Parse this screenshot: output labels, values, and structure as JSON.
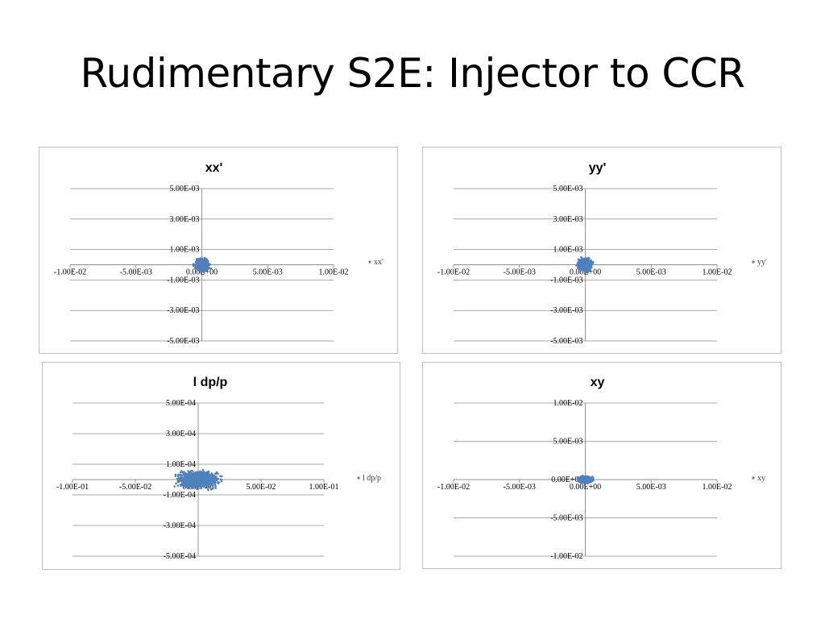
{
  "slide": {
    "title": "Rudimentary S2E: Injector to CCR"
  },
  "colors": {
    "marker": "#4f81bd",
    "grid": "#8c8c8c",
    "frame": "#bfbfbf"
  },
  "chart_data": [
    {
      "id": "xx",
      "type": "scatter",
      "title": "xx'",
      "legend": [
        "xx'"
      ],
      "legend_placement": "right",
      "grid": true,
      "xlim": [
        -0.01,
        0.01
      ],
      "ylim": [
        -0.005,
        0.005
      ],
      "x_ticks": [
        -0.01,
        -0.005,
        0.0,
        0.005,
        0.01
      ],
      "x_tick_labels": [
        "-1.00E-02",
        "-5.00E-03",
        "0.00E+00",
        "5.00E-03",
        "1.00E-02"
      ],
      "y_ticks": [
        0.005,
        0.003,
        0.001,
        -0.001,
        -0.003,
        -0.005
      ],
      "y_tick_labels": [
        "5.00E-03",
        "3.00E-03",
        "1.00E-03",
        "-1.00E-03",
        "-3.00E-03",
        "-5.00E-03"
      ],
      "series": [
        {
          "name": "xx'",
          "x_center": 0.0,
          "y_center": 0.0,
          "x_spread": 0.0004,
          "y_spread": 0.0003,
          "approx_points": 600
        }
      ]
    },
    {
      "id": "yy",
      "type": "scatter",
      "title": "yy'",
      "legend": [
        "yy'"
      ],
      "legend_placement": "right",
      "grid": true,
      "xlim": [
        -0.01,
        0.01
      ],
      "ylim": [
        -0.005,
        0.005
      ],
      "x_ticks": [
        -0.01,
        -0.005,
        0.0,
        0.005,
        0.01
      ],
      "x_tick_labels": [
        "-1.00E-02",
        "-5.00E-03",
        "0.00E+00",
        "5.00E-03",
        "1.00E-02"
      ],
      "y_ticks": [
        0.005,
        0.003,
        0.001,
        -0.001,
        -0.003,
        -0.005
      ],
      "y_tick_labels": [
        "5.00E-03",
        "3.00E-03",
        "1.00E-03",
        "-1.00E-03",
        "-3.00E-03",
        "-5.00E-03"
      ],
      "series": [
        {
          "name": "yy'",
          "x_center": 0.0,
          "y_center": 0.0,
          "x_spread": 0.0004,
          "y_spread": 0.0003,
          "approx_points": 600
        }
      ]
    },
    {
      "id": "ldpp",
      "type": "scatter",
      "title": "l dp/p",
      "legend": [
        "l dp/p"
      ],
      "legend_placement": "right",
      "grid": true,
      "xlim": [
        -0.1,
        0.1
      ],
      "ylim": [
        -0.0005,
        0.0005
      ],
      "x_ticks": [
        -0.1,
        -0.05,
        0.0,
        0.05,
        0.1
      ],
      "x_tick_labels": [
        "-1.00E-01",
        "-5.00E-02",
        "0.00E+00",
        "5.00E-02",
        "1.00E-01"
      ],
      "y_ticks": [
        0.0005,
        0.0003,
        0.0001,
        -0.0001,
        -0.0003,
        -0.0005
      ],
      "y_tick_labels": [
        "5.00E-04",
        "3.00E-04",
        "1.00E-04",
        "-1.00E-04",
        "-3.00E-04",
        "-5.00E-04"
      ],
      "series": [
        {
          "name": "l dp/p",
          "x_center": 0.0,
          "y_center": 0.0,
          "x_spread": 0.012,
          "y_spread": 4e-05,
          "approx_points": 900
        }
      ]
    },
    {
      "id": "xy",
      "type": "scatter",
      "title": "xy",
      "legend": [
        "xy"
      ],
      "legend_placement": "right",
      "grid": true,
      "xlim": [
        -0.01,
        0.01
      ],
      "ylim": [
        -0.01,
        0.01
      ],
      "x_ticks": [
        -0.01,
        -0.005,
        0.0,
        0.005,
        0.01
      ],
      "x_tick_labels": [
        "-1.00E-02",
        "-5.00E-03",
        "0.00E+00",
        "5.00E-03",
        "1.00E-02"
      ],
      "y_ticks": [
        0.01,
        0.005,
        0.0,
        -0.005,
        -0.01
      ],
      "y_tick_labels": [
        "1.00E-02",
        "5.00E-03",
        "0.00E+00",
        "-5.00E-03",
        "-1.00E-02"
      ],
      "series": [
        {
          "name": "xy",
          "x_center": 0.0,
          "y_center": 0.0,
          "x_spread": 0.0004,
          "y_spread": 0.0003,
          "approx_points": 500
        }
      ]
    }
  ]
}
